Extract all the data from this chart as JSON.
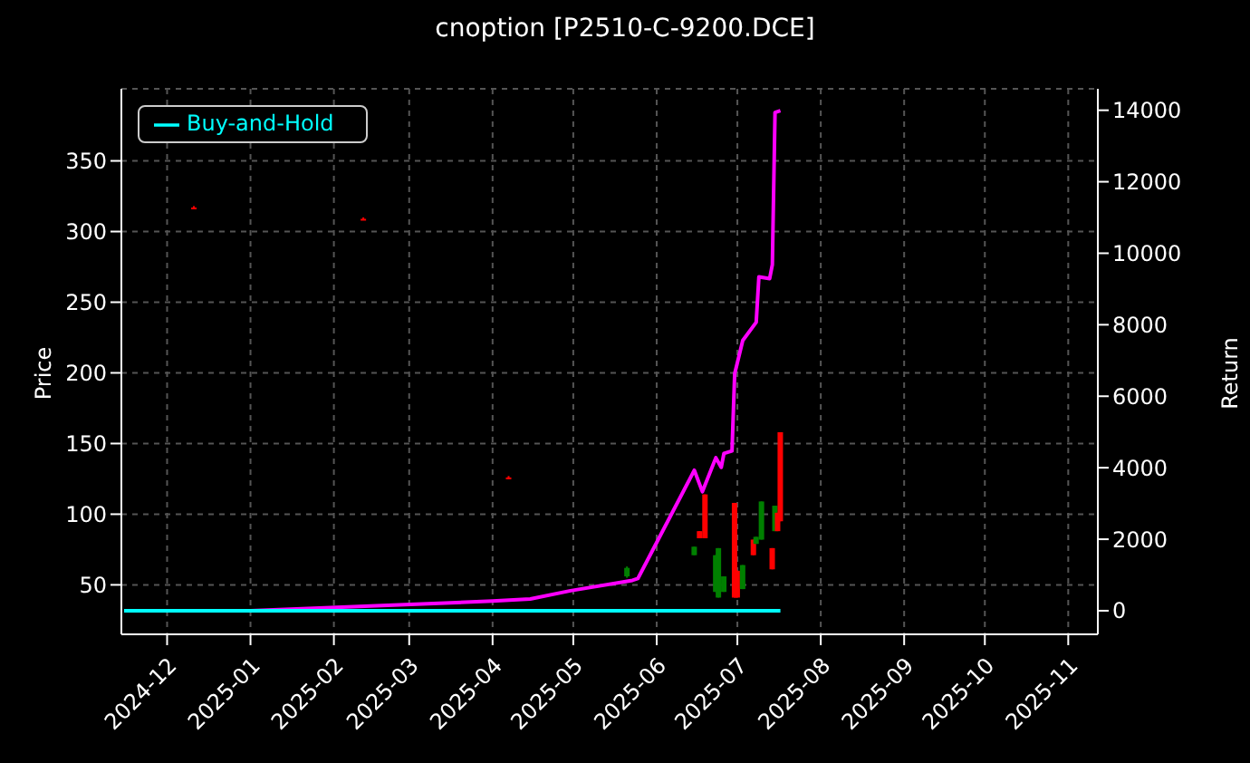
{
  "chart_data": {
    "type": "candlestick",
    "title": "cnoption [P2510-C-9200.DCE]",
    "ylabel": "Price",
    "y2label": "Return",
    "x": [
      "2024-12-11",
      "2025-02-12",
      "2025-04-07",
      "2025-05-21",
      "2025-06-15",
      "2025-06-17",
      "2025-06-19",
      "2025-06-23",
      "2025-06-24",
      "2025-06-26",
      "2025-06-30",
      "2025-07-01",
      "2025-07-03",
      "2025-07-07",
      "2025-07-08",
      "2025-07-10",
      "2025-07-14",
      "2025-07-15",
      "2025-07-16",
      "2025-07-17"
    ],
    "ohlc": [
      [
        317,
        318,
        316,
        317
      ],
      [
        309,
        310,
        308,
        309
      ],
      [
        126,
        127,
        125,
        126
      ],
      [
        62,
        63,
        55,
        56
      ],
      [
        77,
        77,
        71,
        71
      ],
      [
        83,
        88,
        83,
        88
      ],
      [
        83,
        114,
        83,
        114
      ],
      [
        71,
        71,
        45,
        45
      ],
      [
        76,
        76,
        41,
        41
      ],
      [
        56,
        56,
        45,
        45
      ],
      [
        41,
        108,
        41,
        108
      ],
      [
        41,
        60,
        41,
        60
      ],
      [
        64,
        64,
        47,
        47
      ],
      [
        71,
        82,
        71,
        82
      ],
      [
        84,
        84,
        79,
        79
      ],
      [
        109,
        109,
        82,
        82
      ],
      [
        61,
        76,
        61,
        76
      ],
      [
        106,
        106,
        88,
        88
      ],
      [
        88,
        101,
        88,
        101
      ],
      [
        95,
        158,
        95,
        158
      ]
    ],
    "colors": [
      "#ff0000",
      "#ff0000",
      "#ff0000",
      "#008000",
      "#008000",
      "#ff0000",
      "#ff0000",
      "#008000",
      "#008000",
      "#008000",
      "#ff0000",
      "#ff0000",
      "#008000",
      "#ff0000",
      "#008000",
      "#008000",
      "#ff0000",
      "#008000",
      "#ff0000",
      "#ff0000"
    ],
    "series": [
      {
        "type": "line",
        "axis": "y2",
        "color": "#ff00ff",
        "x": [
          "2024-11-15",
          "2025-01-01",
          "2025-04-01",
          "2025-04-15",
          "2025-04-30",
          "2025-05-23",
          "2025-05-25",
          "2025-06-15",
          "2025-06-18",
          "2025-06-23",
          "2025-06-25",
          "2025-06-26",
          "2025-06-29",
          "2025-06-30",
          "2025-07-03",
          "2025-07-08",
          "2025-07-09",
          "2025-07-13",
          "2025-07-14",
          "2025-07-15",
          "2025-07-17"
        ],
        "values": [
          0,
          0,
          270,
          330,
          560,
          850,
          900,
          3930,
          3330,
          4280,
          4010,
          4400,
          4470,
          6630,
          7560,
          8070,
          9340,
          9290,
          9680,
          13940,
          13990
        ]
      },
      {
        "type": "line",
        "axis": "y2",
        "name": "Buy-and-Hold",
        "color": "#00ffff",
        "x": [
          "2024-11-15",
          "2025-07-17"
        ],
        "values": [
          0,
          0
        ]
      }
    ],
    "xlim": [
      "2024-11-14",
      "2025-11-12"
    ],
    "xticks": [
      {
        "value": "2024-12-01",
        "label": "2024-12"
      },
      {
        "value": "2025-01-01",
        "label": "2025-01"
      },
      {
        "value": "2025-02-01",
        "label": "2025-02"
      },
      {
        "value": "2025-03-01",
        "label": "2025-03"
      },
      {
        "value": "2025-04-01",
        "label": "2025-04"
      },
      {
        "value": "2025-05-01",
        "label": "2025-05"
      },
      {
        "value": "2025-06-01",
        "label": "2025-06"
      },
      {
        "value": "2025-07-01",
        "label": "2025-07"
      },
      {
        "value": "2025-08-01",
        "label": "2025-08"
      },
      {
        "value": "2025-09-01",
        "label": "2025-09"
      },
      {
        "value": "2025-10-01",
        "label": "2025-10"
      },
      {
        "value": "2025-11-01",
        "label": "2025-11"
      }
    ],
    "ylim": [
      15,
      401
    ],
    "yticks": [
      50,
      100,
      150,
      200,
      250,
      300,
      350
    ],
    "y2lim": [
      -660,
      14600
    ],
    "y2ticks": [
      0,
      2000,
      4000,
      6000,
      8000,
      10000,
      12000,
      14000
    ],
    "grid": true,
    "legend": "top left",
    "line_style": "solid",
    "marker": "none"
  }
}
